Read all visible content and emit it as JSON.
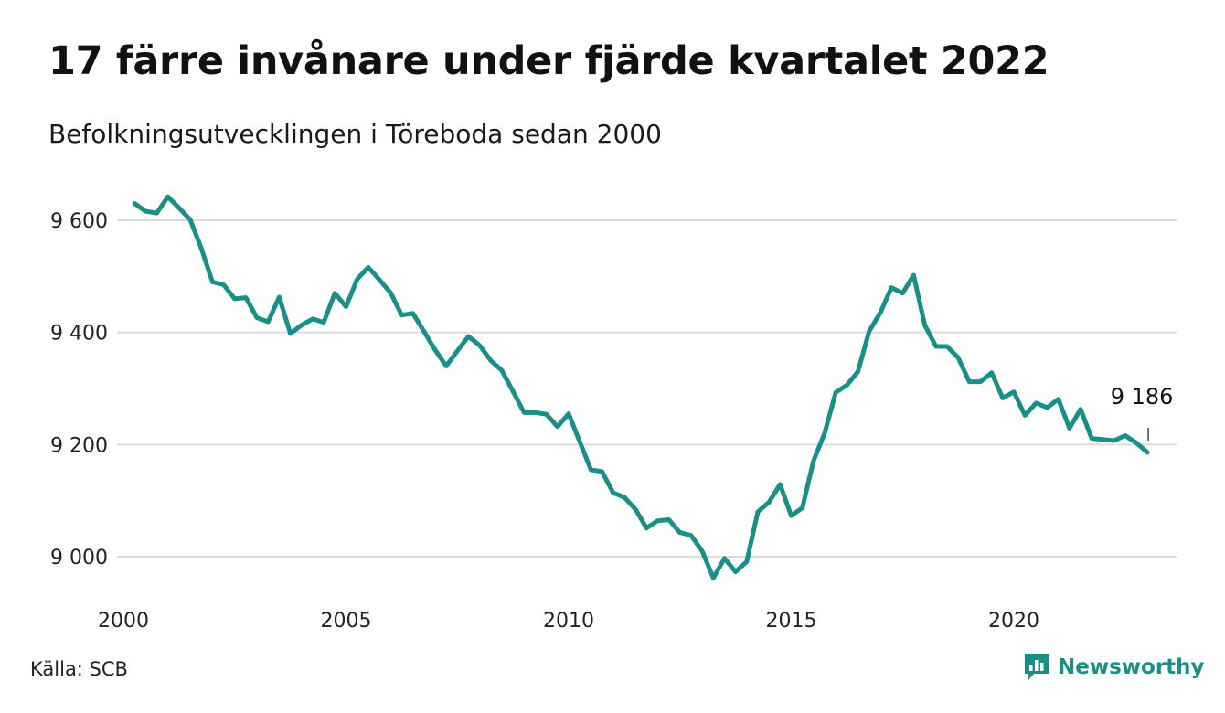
{
  "title": "17 färre invånare under fjärde kvartalet 2022",
  "subtitle": "Befolkningsutvecklingen i Töreboda sedan 2000",
  "source": "Källa: SCB",
  "brand": {
    "name": "Newsworthy",
    "icon": "newsworthy-logo-icon",
    "color": "#1a8f87"
  },
  "chart_data": {
    "type": "line",
    "title": "17 färre invånare under fjärde kvartalet 2022",
    "subtitle": "Befolkningsutvecklingen i Töreboda sedan 2000",
    "xlabel": "",
    "ylabel": "",
    "xlim": [
      2000,
      2023.5
    ],
    "ylim": [
      8940,
      9660
    ],
    "x_ticks": [
      2000,
      2005,
      2010,
      2015,
      2020
    ],
    "y_ticks": [
      {
        "value": 9000,
        "label": "9 000"
      },
      {
        "value": 9200,
        "label": "9 200"
      },
      {
        "value": 9400,
        "label": "9 400"
      },
      {
        "value": 9600,
        "label": "9 600"
      }
    ],
    "grid": "horizontal",
    "line_color": "#1a8f87",
    "series": [
      {
        "values": [
          [
            2000.25,
            9630
          ],
          [
            2000.5,
            9616
          ],
          [
            2000.75,
            9613
          ],
          [
            2001.0,
            9642
          ],
          [
            2001.25,
            9622
          ],
          [
            2001.5,
            9601
          ],
          [
            2001.75,
            9550
          ],
          [
            2002.0,
            9490
          ],
          [
            2002.25,
            9485
          ],
          [
            2002.5,
            9460
          ],
          [
            2002.75,
            9462
          ],
          [
            2003.0,
            9426
          ],
          [
            2003.25,
            9419
          ],
          [
            2003.5,
            9463
          ],
          [
            2003.75,
            9398
          ],
          [
            2004.0,
            9413
          ],
          [
            2004.25,
            9424
          ],
          [
            2004.5,
            9418
          ],
          [
            2004.75,
            9470
          ],
          [
            2005.0,
            9446
          ],
          [
            2005.25,
            9495
          ],
          [
            2005.5,
            9516
          ],
          [
            2005.75,
            9494
          ],
          [
            2006.0,
            9471
          ],
          [
            2006.25,
            9431
          ],
          [
            2006.5,
            9434
          ],
          [
            2006.75,
            9402
          ],
          [
            2007.0,
            9369
          ],
          [
            2007.25,
            9340
          ],
          [
            2007.5,
            9367
          ],
          [
            2007.75,
            9393
          ],
          [
            2008.0,
            9377
          ],
          [
            2008.25,
            9350
          ],
          [
            2008.5,
            9332
          ],
          [
            2008.75,
            9295
          ],
          [
            2009.0,
            9257
          ],
          [
            2009.25,
            9257
          ],
          [
            2009.5,
            9254
          ],
          [
            2009.75,
            9232
          ],
          [
            2010.0,
            9255
          ],
          [
            2010.25,
            9205
          ],
          [
            2010.5,
            9155
          ],
          [
            2010.75,
            9152
          ],
          [
            2011.0,
            9114
          ],
          [
            2011.25,
            9106
          ],
          [
            2011.5,
            9085
          ],
          [
            2011.75,
            9051
          ],
          [
            2012.0,
            9064
          ],
          [
            2012.25,
            9066
          ],
          [
            2012.5,
            9043
          ],
          [
            2012.75,
            9038
          ],
          [
            2013.0,
            9010
          ],
          [
            2013.25,
            8962
          ],
          [
            2013.5,
            8997
          ],
          [
            2013.75,
            8973
          ],
          [
            2014.0,
            8991
          ],
          [
            2014.25,
            9080
          ],
          [
            2014.5,
            9097
          ],
          [
            2014.75,
            9129
          ],
          [
            2015.0,
            9073
          ],
          [
            2015.25,
            9087
          ],
          [
            2015.5,
            9171
          ],
          [
            2015.75,
            9220
          ],
          [
            2016.0,
            9293
          ],
          [
            2016.25,
            9306
          ],
          [
            2016.5,
            9330
          ],
          [
            2016.75,
            9402
          ],
          [
            2017.0,
            9435
          ],
          [
            2017.25,
            9480
          ],
          [
            2017.5,
            9470
          ],
          [
            2017.75,
            9502
          ],
          [
            2018.0,
            9413
          ],
          [
            2018.25,
            9375
          ],
          [
            2018.5,
            9375
          ],
          [
            2018.75,
            9355
          ],
          [
            2019.0,
            9312
          ],
          [
            2019.25,
            9312
          ],
          [
            2019.5,
            9328
          ],
          [
            2019.75,
            9283
          ],
          [
            2020.0,
            9294
          ],
          [
            2020.25,
            9252
          ],
          [
            2020.5,
            9274
          ],
          [
            2020.75,
            9266
          ],
          [
            2021.0,
            9281
          ],
          [
            2021.25,
            9229
          ],
          [
            2021.5,
            9263
          ],
          [
            2021.75,
            9211
          ],
          [
            2022.0,
            9209
          ],
          [
            2022.25,
            9207
          ],
          [
            2022.5,
            9216
          ],
          [
            2022.75,
            9203
          ],
          [
            2023.0,
            9186
          ]
        ]
      }
    ],
    "annotations": [
      {
        "x": 2023.0,
        "y": 9186,
        "label": "9 186"
      }
    ]
  }
}
